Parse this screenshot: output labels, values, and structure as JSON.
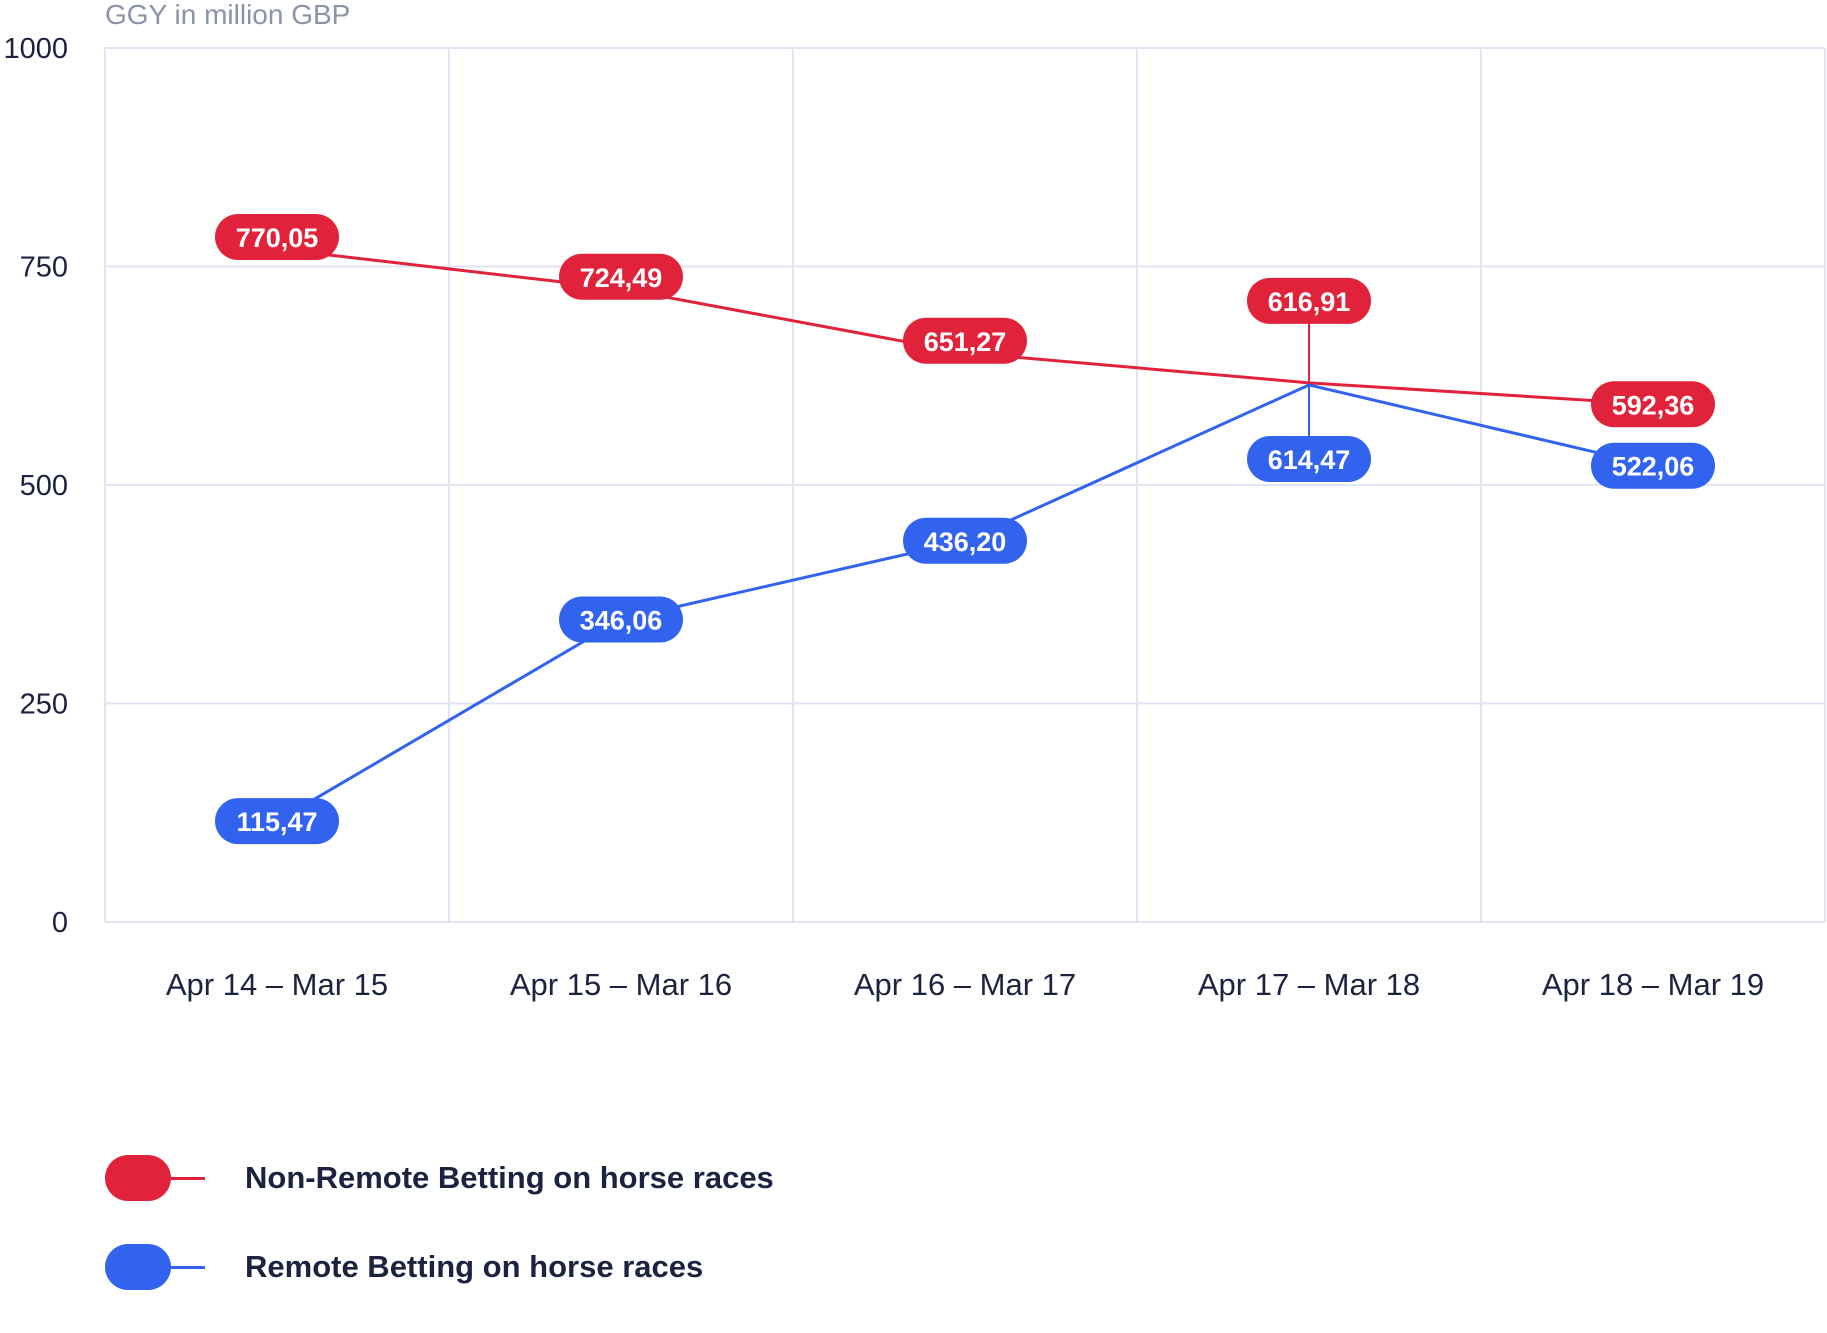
{
  "chart_data": {
    "type": "line",
    "ylabel": "GGY in million GBP",
    "xlabel": "",
    "categories": [
      "Apr 14 – Mar 15",
      "Apr 15 – Mar 16",
      "Apr 16 – Mar 17",
      "Apr 17 – Mar 18",
      "Apr 18 – Mar 19"
    ],
    "ylim": [
      0,
      1000
    ],
    "yticks": [
      0,
      250,
      500,
      750,
      1000
    ],
    "grid": true,
    "legend_position": "bottom-left",
    "series": [
      {
        "name": "Non-Remote Betting on horse races",
        "color": "#e0233a",
        "values": [
          770.05,
          724.49,
          651.27,
          616.91,
          592.36
        ],
        "labels": [
          "770,05",
          "724,49",
          "651,27",
          "616,91",
          "592,36"
        ]
      },
      {
        "name": "Remote Betting on horse races",
        "color": "#3263ef",
        "values": [
          115.47,
          346.06,
          436.2,
          614.47,
          522.06
        ],
        "labels": [
          "115,47",
          "346,06",
          "436,20",
          "614,47",
          "522,06"
        ]
      }
    ]
  }
}
